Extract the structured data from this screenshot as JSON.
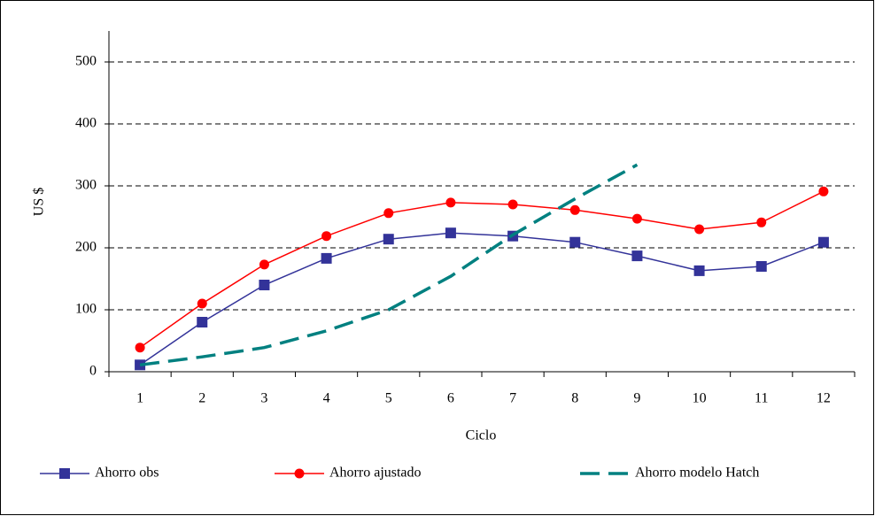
{
  "chart_data": {
    "type": "line",
    "x_label": "Ciclo",
    "y_label": "US $",
    "categories": [
      "1",
      "2",
      "3",
      "4",
      "5",
      "6",
      "7",
      "8",
      "9",
      "10",
      "11",
      "12"
    ],
    "series": [
      {
        "name": "Ahorro obs",
        "color": "#333399",
        "marker": "square",
        "values": [
          11,
          80,
          140,
          183,
          214,
          224,
          219,
          209,
          187,
          163,
          170,
          209
        ]
      },
      {
        "name": "Ahorro ajustado",
        "color": "#ff0000",
        "marker": "circle",
        "values": [
          39,
          110,
          173,
          219,
          256,
          273,
          270,
          261,
          247,
          230,
          241,
          291
        ]
      },
      {
        "name": "Ahorro modelo Hatch",
        "color": "#008080",
        "marker": "dashed",
        "values": [
          11,
          24,
          39,
          66,
          100,
          154,
          221,
          279,
          334,
          null,
          null,
          null
        ]
      }
    ],
    "ylim": [
      0,
      550
    ],
    "yticks": [
      0,
      100,
      200,
      300,
      400,
      500
    ],
    "grid": true,
    "legend": "bottom"
  }
}
